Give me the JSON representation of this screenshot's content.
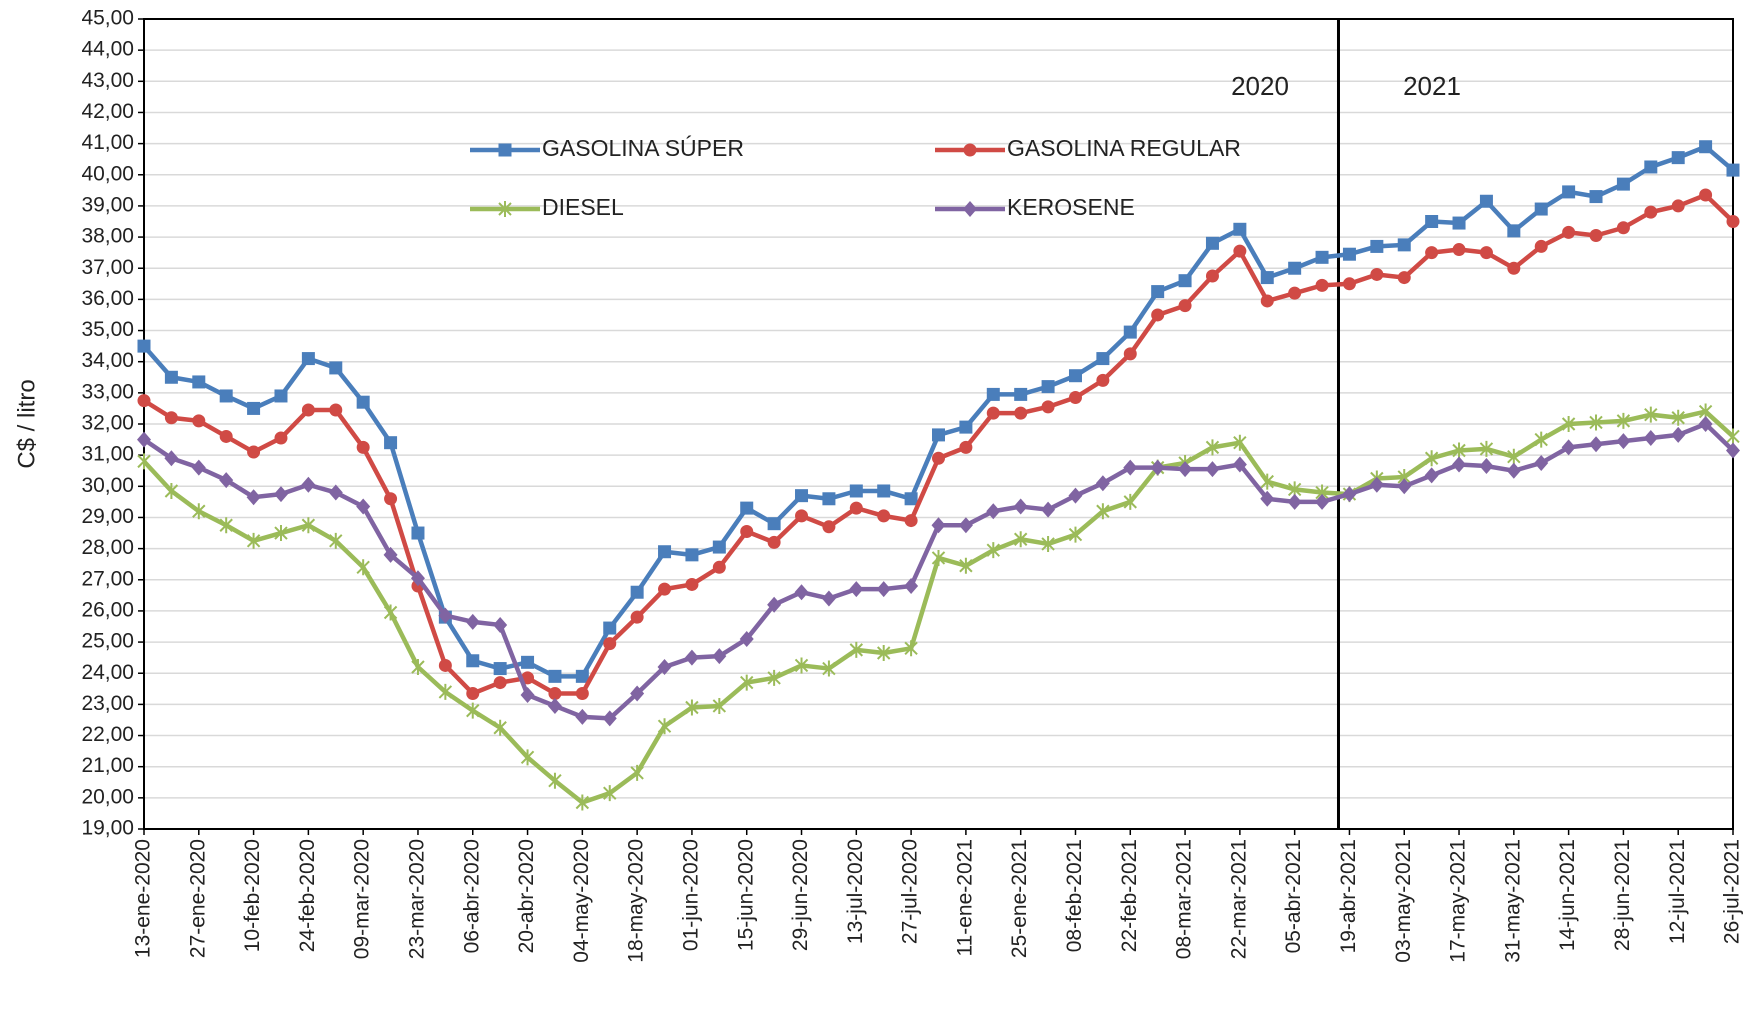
{
  "chart_data": {
    "type": "line",
    "y_label": "C$ / litro",
    "annotations": [
      "2020",
      "2021"
    ],
    "categories": [
      "13-ene-2020",
      null,
      "27-ene-2020",
      null,
      "10-feb-2020",
      null,
      "24-feb-2020",
      null,
      "09-mar-2020",
      null,
      "23-mar-2020",
      null,
      "06-abr-2020",
      null,
      "20-abr-2020",
      null,
      "04-may-2020",
      null,
      "18-may-2020",
      null,
      "01-jun-2020",
      null,
      "15-jun-2020",
      null,
      "29-jun-2020",
      null,
      "13-jul-2020",
      null,
      "27-jul-2020",
      null,
      "11-ene-2021",
      null,
      "25-ene-2021",
      null,
      "08-feb-2021",
      null,
      "22-feb-2021",
      null,
      "08-mar-2021",
      null,
      "22-mar-2021",
      null,
      "05-abr-2021",
      null,
      "19-abr-2021",
      null,
      "03-may-2021",
      null,
      "17-may-2021",
      null,
      "31-may-2021",
      null,
      "14-jun-2021",
      null,
      "28-jun-2021",
      null,
      "12-jul-2021",
      null,
      "26-jul-2021"
    ],
    "series": [
      {
        "name": "GASOLINA SÚPER",
        "color": "#4a7ebb",
        "marker": "square",
        "values": [
          34.5,
          33.5,
          33.35,
          32.9,
          32.5,
          32.9,
          34.1,
          33.8,
          32.7,
          31.4,
          28.5,
          25.8,
          24.4,
          24.15,
          24.35,
          23.9,
          23.9,
          25.45,
          26.6,
          27.9,
          27.8,
          28.05,
          29.3,
          28.8,
          29.7,
          29.6,
          29.85,
          29.85,
          29.6,
          31.65,
          31.9,
          32.95,
          32.95,
          33.2,
          33.55,
          34.1,
          34.95,
          36.25,
          36.6,
          37.8,
          38.25,
          36.7,
          37.0,
          37.35,
          37.45,
          37.7,
          37.75,
          38.5,
          38.45,
          39.15,
          38.2,
          38.9,
          39.45,
          39.3,
          39.7,
          40.25,
          40.55,
          40.9,
          40.15
        ]
      },
      {
        "name": "GASOLINA REGULAR",
        "color": "#d04a45",
        "marker": "circle",
        "values": [
          32.75,
          32.2,
          32.1,
          31.6,
          31.1,
          31.55,
          32.45,
          32.45,
          31.25,
          29.6,
          26.8,
          24.25,
          23.35,
          23.7,
          23.85,
          23.35,
          23.35,
          24.95,
          25.8,
          26.7,
          26.85,
          27.4,
          28.55,
          28.2,
          29.05,
          28.7,
          29.3,
          29.05,
          28.9,
          30.9,
          31.25,
          32.35,
          32.35,
          32.55,
          32.85,
          33.4,
          34.25,
          35.5,
          35.8,
          36.75,
          37.55,
          35.95,
          36.2,
          36.45,
          36.5,
          36.8,
          36.7,
          37.5,
          37.6,
          37.5,
          37.0,
          37.7,
          38.15,
          38.05,
          38.3,
          38.8,
          39.0,
          39.35,
          38.5
        ]
      },
      {
        "name": "DIESEL",
        "color": "#9bbb59",
        "marker": "star",
        "values": [
          30.8,
          29.85,
          29.2,
          28.75,
          28.25,
          28.5,
          28.75,
          28.25,
          27.4,
          25.95,
          24.2,
          23.4,
          22.8,
          22.25,
          21.3,
          20.55,
          19.85,
          20.15,
          20.8,
          22.3,
          22.9,
          22.95,
          23.7,
          23.85,
          24.25,
          24.15,
          24.75,
          24.65,
          24.8,
          27.7,
          27.45,
          27.95,
          28.3,
          28.15,
          28.45,
          29.2,
          29.5,
          30.6,
          30.75,
          31.25,
          31.4,
          30.15,
          29.9,
          29.8,
          29.75,
          30.25,
          30.3,
          30.9,
          31.15,
          31.2,
          30.95,
          31.5,
          32.0,
          32.05,
          32.1,
          32.3,
          32.2,
          32.4,
          31.6
        ]
      },
      {
        "name": "KEROSENE",
        "color": "#8064a2",
        "marker": "diamond",
        "values": [
          31.5,
          30.9,
          30.6,
          30.2,
          29.65,
          29.75,
          30.05,
          29.8,
          29.35,
          27.8,
          27.05,
          25.85,
          25.65,
          25.55,
          23.3,
          22.95,
          22.6,
          22.55,
          23.35,
          24.2,
          24.5,
          24.55,
          25.1,
          26.2,
          26.6,
          26.4,
          26.7,
          26.7,
          26.8,
          28.75,
          28.75,
          29.2,
          29.35,
          29.25,
          29.7,
          30.1,
          30.6,
          30.6,
          30.55,
          30.55,
          30.7,
          29.6,
          29.5,
          29.5,
          29.75,
          30.05,
          30.0,
          30.35,
          30.7,
          30.65,
          30.5,
          30.75,
          31.25,
          31.35,
          31.45,
          31.55,
          31.65,
          32.0,
          31.15
        ]
      }
    ],
    "ylim": [
      19,
      45
    ],
    "yticks": [
      {
        "value": 19,
        "label": "19,00"
      },
      {
        "value": 20,
        "label": "20,00"
      },
      {
        "value": 21,
        "label": "21,00"
      },
      {
        "value": 22,
        "label": "22,00"
      },
      {
        "value": 23,
        "label": "23,00"
      },
      {
        "value": 24,
        "label": "24,00"
      },
      {
        "value": 25,
        "label": "25,00"
      },
      {
        "value": 26,
        "label": "26,00"
      },
      {
        "value": 27,
        "label": "27,00"
      },
      {
        "value": 28,
        "label": "28,00"
      },
      {
        "value": 29,
        "label": "29,00"
      },
      {
        "value": 30,
        "label": "30,00"
      },
      {
        "value": 31,
        "label": "31,00"
      },
      {
        "value": 32,
        "label": "32,00"
      },
      {
        "value": 33,
        "label": "33,00"
      },
      {
        "value": 34,
        "label": "34,00"
      },
      {
        "value": 35,
        "label": "35,00"
      },
      {
        "value": 36,
        "label": "36,00"
      },
      {
        "value": 37,
        "label": "37,00"
      },
      {
        "value": 38,
        "label": "38,00"
      },
      {
        "value": 39,
        "label": "39,00"
      },
      {
        "value": 40,
        "label": "40,00"
      },
      {
        "value": 41,
        "label": "41,00"
      },
      {
        "value": 42,
        "label": "42,00"
      },
      {
        "value": 43,
        "label": "43,00"
      },
      {
        "value": 44,
        "label": "44,00"
      },
      {
        "value": 45,
        "label": "45,00"
      }
    ],
    "grid": true
  }
}
